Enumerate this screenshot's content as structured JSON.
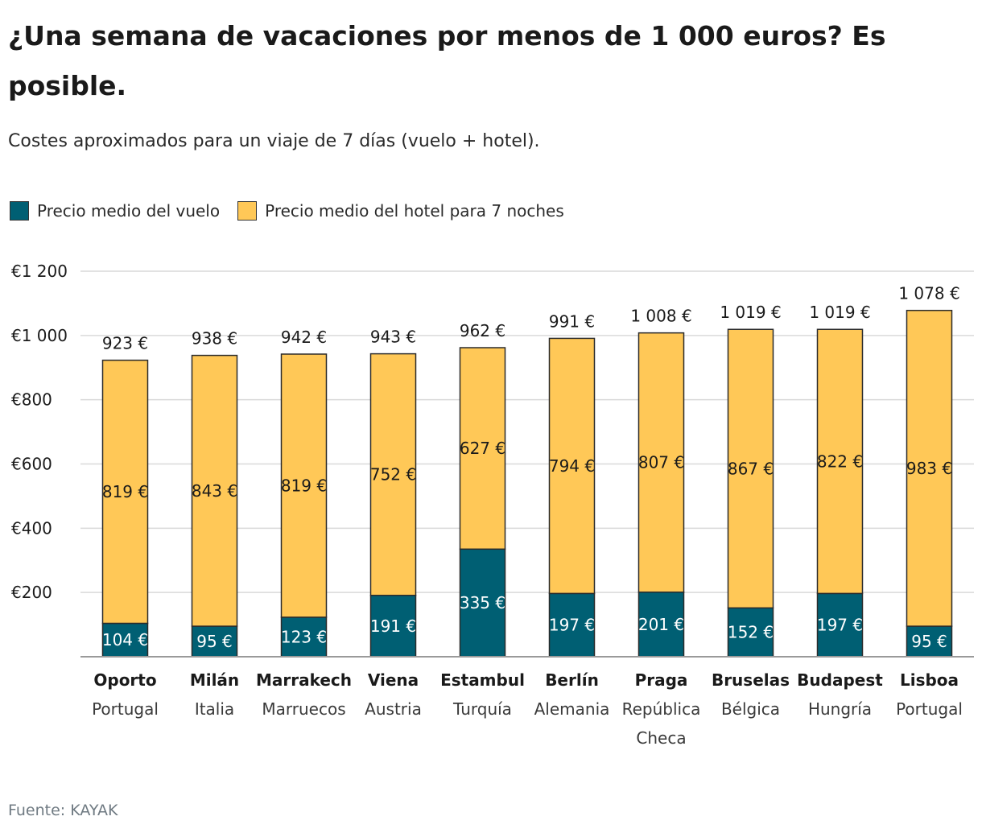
{
  "title": "¿Una semana de vacaciones por menos de 1 000 euros? Es posible.",
  "subtitle": "Costes aproximados para un viaje de 7 días (vuelo + hotel).",
  "source": "Fuente: KAYAK",
  "colors": {
    "flight": "#005f73",
    "hotel": "#ffc857",
    "grid": "#d9d9d9",
    "axis": "#9a9a9a"
  },
  "chart_data": {
    "type": "bar",
    "stacked": true,
    "categories": [
      "Oporto",
      "Milán",
      "Marrakech",
      "Viena",
      "Estambul",
      "Berlín",
      "Praga",
      "Bruselas",
      "Budapest",
      "Lisboa"
    ],
    "countries": [
      "Portugal",
      "Italia",
      "Marruecos",
      "Austria",
      "Turquía",
      "Alemania",
      "República Checa",
      "Bélgica",
      "Hungría",
      "Portugal"
    ],
    "series": [
      {
        "name": "Precio medio del vuelo",
        "values": [
          104,
          95,
          123,
          191,
          335,
          197,
          201,
          152,
          197,
          95
        ],
        "labels": [
          "104 €",
          "95 €",
          "123 €",
          "191 €",
          "335 €",
          "197 €",
          "201 €",
          "152 €",
          "197 €",
          "95 €"
        ]
      },
      {
        "name": "Precio medio del hotel para 7 noches",
        "values": [
          819,
          843,
          819,
          752,
          627,
          794,
          807,
          867,
          822,
          983
        ],
        "labels": [
          "819 €",
          "843 €",
          "819 €",
          "752 €",
          "627 €",
          "794 €",
          "807 €",
          "867 €",
          "822 €",
          "983 €"
        ]
      }
    ],
    "totals": [
      923,
      938,
      942,
      943,
      962,
      991,
      1008,
      1019,
      1019,
      1078
    ],
    "total_labels": [
      "923 €",
      "938 €",
      "942 €",
      "943 €",
      "962 €",
      "991 €",
      "1 008 €",
      "1 019 €",
      "1 019 €",
      "1 078 €"
    ],
    "ylim": [
      0,
      1200
    ],
    "yticks": [
      200,
      400,
      600,
      800,
      1000,
      1200
    ],
    "ytick_labels": [
      "€200",
      "€400",
      "€600",
      "€800",
      "€1 000",
      "€1 200"
    ],
    "grid": true,
    "legend_position": "top-left"
  }
}
